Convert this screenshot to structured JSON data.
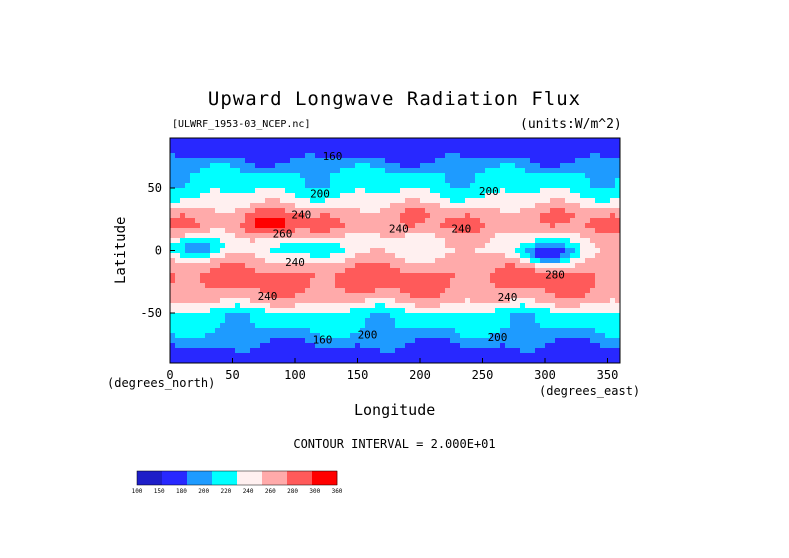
{
  "chart_data": {
    "type": "heatmap",
    "title": "Upward Longwave Radiation Flux",
    "source_label": "[ULWRF_1953-03_NCEP.nc]",
    "units_label": "(units:W/m^2)",
    "xlabel": "Longitude",
    "ylabel": "Latitude",
    "x_unit_note": "(degrees_east)",
    "y_unit_note": "(degrees_north)",
    "xlim": [
      0,
      360
    ],
    "ylim": [
      -90,
      90
    ],
    "x_ticks": [
      "0",
      "50",
      "100",
      "150",
      "200",
      "250",
      "300",
      "350"
    ],
    "y_ticks": [
      "50",
      "0",
      "-50"
    ],
    "contour_interval_text": "CONTOUR INTERVAL = 2.000E+01",
    "colorbar_levels": [
      "100",
      "150",
      "180",
      "200",
      "220",
      "240",
      "260",
      "280",
      "300",
      "360"
    ],
    "colors": [
      "#1e1ec8",
      "#2828ff",
      "#1e9bff",
      "#00ffff",
      "#fff0f0",
      "#ffaaaa",
      "#ff5a5a",
      "#ff0000"
    ],
    "contour_labels": [
      {
        "text": "160",
        "lon": 130,
        "lat": 75
      },
      {
        "text": "200",
        "lon": 120,
        "lat": 45
      },
      {
        "text": "200",
        "lon": 255,
        "lat": 47
      },
      {
        "text": "240",
        "lon": 105,
        "lat": 28
      },
      {
        "text": "240",
        "lon": 183,
        "lat": 17
      },
      {
        "text": "260",
        "lon": 90,
        "lat": 13
      },
      {
        "text": "240",
        "lon": 233,
        "lat": 17
      },
      {
        "text": "240",
        "lon": 100,
        "lat": -10
      },
      {
        "text": "280",
        "lon": 308,
        "lat": -20
      },
      {
        "text": "240",
        "lon": 78,
        "lat": -37
      },
      {
        "text": "240",
        "lon": 270,
        "lat": -38
      },
      {
        "text": "200",
        "lon": 158,
        "lat": -68
      },
      {
        "text": "200",
        "lon": 262,
        "lat": -70
      },
      {
        "text": "160",
        "lon": 122,
        "lat": -72
      }
    ],
    "zonal_profile": [
      {
        "lat": 90,
        "value": 160
      },
      {
        "lat": 80,
        "value": 165
      },
      {
        "lat": 70,
        "value": 185
      },
      {
        "lat": 60,
        "value": 205
      },
      {
        "lat": 50,
        "value": 212
      },
      {
        "lat": 40,
        "value": 228
      },
      {
        "lat": 30,
        "value": 255
      },
      {
        "lat": 20,
        "value": 258
      },
      {
        "lat": 10,
        "value": 240
      },
      {
        "lat": 0,
        "value": 235
      },
      {
        "lat": -10,
        "value": 250
      },
      {
        "lat": -20,
        "value": 265
      },
      {
        "lat": -30,
        "value": 262
      },
      {
        "lat": -40,
        "value": 245
      },
      {
        "lat": -50,
        "value": 212
      },
      {
        "lat": -60,
        "value": 205
      },
      {
        "lat": -70,
        "value": 190
      },
      {
        "lat": -80,
        "value": 170
      },
      {
        "lat": -90,
        "value": 160
      }
    ],
    "anomalies": [
      {
        "lon": 20,
        "lat": 3,
        "value": 180
      },
      {
        "lon": 120,
        "lat": 2,
        "value": 195
      },
      {
        "lon": 300,
        "lat": -2,
        "value": 165
      },
      {
        "lon": 80,
        "lat": 20,
        "value": 290
      },
      {
        "lon": 140,
        "lat": -25,
        "value": 275
      },
      {
        "lon": 10,
        "lat": -25,
        "value": 270
      }
    ]
  }
}
